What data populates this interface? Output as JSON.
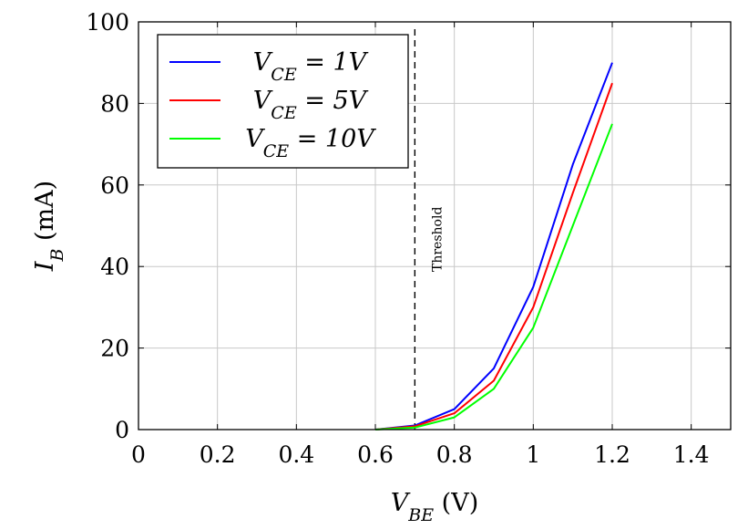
{
  "chart_data": {
    "type": "line",
    "x": [
      0.6,
      0.7,
      0.8,
      0.9,
      1.0,
      1.1,
      1.2
    ],
    "series": [
      {
        "name_main": "V",
        "name_sub": "CE",
        "name_rest": " = 1V",
        "color": "#0000ff",
        "values": [
          0,
          1,
          5,
          15,
          35,
          65,
          90
        ]
      },
      {
        "name_main": "V",
        "name_sub": "CE",
        "name_rest": " = 5V",
        "color": "#ff0000",
        "values": [
          0,
          0.8,
          4,
          12,
          30,
          58,
          85
        ]
      },
      {
        "name_main": "V",
        "name_sub": "CE",
        "name_rest": " = 10V",
        "color": "#00ff00",
        "values": [
          0,
          0.5,
          3,
          10,
          25,
          50,
          75
        ]
      }
    ],
    "xlim": [
      0,
      1.5
    ],
    "ylim": [
      0,
      100
    ],
    "xticks": [
      0,
      0.2,
      0.4,
      0.6,
      0.8,
      1.0,
      1.2,
      1.4
    ],
    "xtick_labels": [
      "0",
      "0.2",
      "0.4",
      "0.6",
      "0.8",
      "1",
      "1.2",
      "1.4"
    ],
    "yticks": [
      0,
      20,
      40,
      60,
      80,
      100
    ],
    "ytick_labels": [
      "0",
      "20",
      "40",
      "60",
      "80",
      "100"
    ],
    "xlabel": {
      "main": "V",
      "sub": "BE",
      "rest": " (V)"
    },
    "ylabel": {
      "main": "I",
      "sub": "B",
      "rest": " (mA)"
    },
    "grid": true,
    "legend_position": "top-left",
    "threshold": {
      "x": 0.7,
      "label": "Threshold",
      "style": "dashed"
    }
  }
}
